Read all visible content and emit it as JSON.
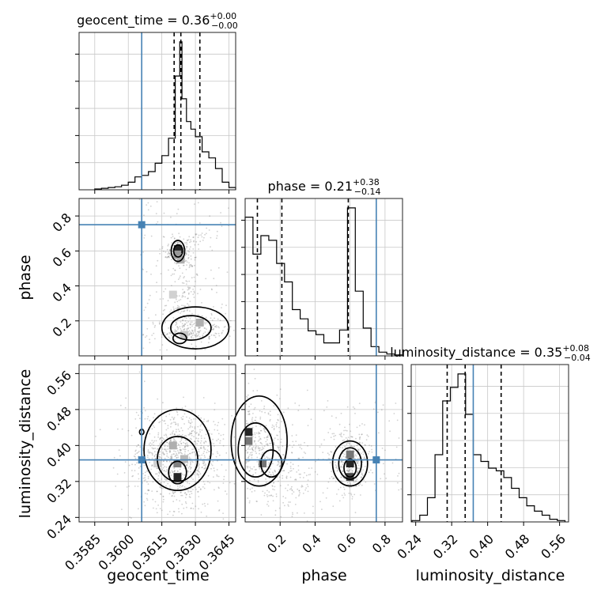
{
  "parameters": [
    "geocent_time",
    "phase",
    "luminosity_distance"
  ],
  "titles": [
    {
      "name": "geocent_time",
      "value": "0.36",
      "plus": "+0.00",
      "minus": "−0.00"
    },
    {
      "name": "phase",
      "value": "0.21",
      "plus": "+0.38",
      "minus": "−0.14"
    },
    {
      "name": "luminosity_distance",
      "value": "0.35",
      "plus": "+0.08",
      "minus": "−0.04"
    }
  ],
  "axis_labels": {
    "geocent_time": "geocent_time",
    "phase": "phase",
    "luminosity_distance": "luminosity_distance"
  },
  "chart_data": {
    "type": "corner",
    "truths": {
      "geocent_time": 0.3606,
      "phase": 0.75,
      "luminosity_distance": 0.368
    },
    "quantiles": {
      "geocent_time": [
        0.36205,
        0.36235,
        0.3632
      ],
      "phase": [
        0.07,
        0.21,
        0.59
      ],
      "luminosity_distance": [
        0.31,
        0.35,
        0.43
      ]
    },
    "ranges": {
      "geocent_time": [
        0.3578,
        0.3648
      ],
      "phase": [
        0.0,
        0.9
      ],
      "luminosity_distance": [
        0.23,
        0.58
      ]
    },
    "ticks": {
      "geocent_time": {
        "values": [
          0.3585,
          0.36,
          0.3615,
          0.363,
          0.3645
        ],
        "labels": [
          "0.3585",
          "0.3600",
          "0.3615",
          "0.3630",
          "0.3645"
        ]
      },
      "phase": {
        "values": [
          0.2,
          0.4,
          0.6,
          0.8
        ],
        "labels": [
          "0.2",
          "0.4",
          "0.6",
          "0.8"
        ]
      },
      "luminosity_distance": {
        "values": [
          0.24,
          0.32,
          0.4,
          0.48,
          0.56
        ],
        "labels": [
          "0.24",
          "0.32",
          "0.40",
          "0.48",
          "0.56"
        ]
      }
    },
    "histograms": {
      "geocent_time": {
        "edges": [
          0.3585,
          0.3588,
          0.3591,
          0.3594,
          0.3597,
          0.36,
          0.3603,
          0.3606,
          0.3609,
          0.3612,
          0.3615,
          0.3618,
          0.3621,
          0.3623,
          0.3624,
          0.3626,
          0.3628,
          0.363,
          0.3633,
          0.3636,
          0.3639,
          0.3642,
          0.3645,
          0.3648
        ],
        "counts": [
          1,
          2,
          3,
          4,
          6,
          10,
          17,
          19,
          24,
          35,
          45,
          68,
          150,
          195,
          120,
          90,
          80,
          70,
          50,
          42,
          28,
          10,
          3
        ]
      },
      "phase": {
        "edges": [
          0.0,
          0.045,
          0.09,
          0.135,
          0.18,
          0.225,
          0.27,
          0.315,
          0.36,
          0.405,
          0.45,
          0.495,
          0.54,
          0.585,
          0.63,
          0.675,
          0.72,
          0.765,
          0.81,
          0.855,
          0.9
        ],
        "counts": [
          150,
          110,
          130,
          125,
          100,
          80,
          50,
          40,
          27,
          23,
          14,
          14,
          28,
          160,
          70,
          30,
          10,
          4,
          2,
          1
        ]
      },
      "luminosity_distance": {
        "edges": [
          0.232,
          0.249,
          0.266,
          0.283,
          0.3,
          0.317,
          0.334,
          0.351,
          0.368,
          0.385,
          0.402,
          0.419,
          0.436,
          0.453,
          0.47,
          0.487,
          0.504,
          0.521,
          0.538,
          0.555,
          0.572
        ],
        "counts": [
          1,
          5,
          18,
          50,
          90,
          100,
          110,
          80,
          50,
          45,
          40,
          38,
          33,
          25,
          18,
          12,
          8,
          5,
          2,
          1
        ]
      }
    },
    "contours": {
      "phase_vs_geocent_time": {
        "cells": [
          {
            "x": 0.36222,
            "y": 0.61,
            "level": 0.95
          },
          {
            "x": 0.36219,
            "y": 0.58,
            "level": 0.45
          },
          {
            "x": 0.36234,
            "y": 0.55,
            "level": 0.35
          },
          {
            "x": 0.362,
            "y": 0.35,
            "level": 0.2
          },
          {
            "x": 0.3632,
            "y": 0.19,
            "level": 0.35
          },
          {
            "x": 0.3625,
            "y": 0.12,
            "level": 0.25
          }
        ],
        "centers": [
          {
            "x": 0.36222,
            "y": 0.6,
            "rx": 0.0003,
            "ry": 0.06
          },
          {
            "x": 0.36223,
            "y": 0.6,
            "rx": 0.0002,
            "ry": 0.035
          },
          {
            "x": 0.363,
            "y": 0.16,
            "rx": 0.0015,
            "ry": 0.12
          },
          {
            "x": 0.3628,
            "y": 0.16,
            "rx": 0.0009,
            "ry": 0.07
          },
          {
            "x": 0.3623,
            "y": 0.1,
            "rx": 0.0003,
            "ry": 0.03
          }
        ]
      },
      "luminosity_distance_vs_geocent_time": {
        "cells": [
          {
            "x": 0.3622,
            "y": 0.33,
            "level": 0.95
          },
          {
            "x": 0.3622,
            "y": 0.36,
            "level": 0.55
          },
          {
            "x": 0.362,
            "y": 0.4,
            "level": 0.35
          },
          {
            "x": 0.3625,
            "y": 0.37,
            "level": 0.3
          },
          {
            "x": 0.3613,
            "y": 0.36,
            "level": 0.2
          }
        ],
        "centers": [
          {
            "x": 0.3622,
            "y": 0.39,
            "rx": 0.0015,
            "ry": 0.09
          },
          {
            "x": 0.3622,
            "y": 0.37,
            "rx": 0.0009,
            "ry": 0.05
          },
          {
            "x": 0.3622,
            "y": 0.34,
            "rx": 0.0004,
            "ry": 0.025
          },
          {
            "x": 0.3606,
            "y": 0.43,
            "rx": 0.0001,
            "ry": 0.006
          }
        ]
      },
      "luminosity_distance_vs_phase": {
        "cells": [
          {
            "x": 0.02,
            "y": 0.43,
            "level": 0.95
          },
          {
            "x": 0.02,
            "y": 0.41,
            "level": 0.6
          },
          {
            "x": 0.1,
            "y": 0.36,
            "level": 0.6
          },
          {
            "x": 0.6,
            "y": 0.36,
            "level": 0.95
          },
          {
            "x": 0.6,
            "y": 0.33,
            "level": 0.8
          },
          {
            "x": 0.6,
            "y": 0.38,
            "level": 0.6
          }
        ],
        "centers": [
          {
            "x": 0.08,
            "y": 0.41,
            "rx": 0.16,
            "ry": 0.1
          },
          {
            "x": 0.06,
            "y": 0.39,
            "rx": 0.1,
            "ry": 0.06
          },
          {
            "x": 0.15,
            "y": 0.36,
            "rx": 0.06,
            "ry": 0.03
          },
          {
            "x": 0.6,
            "y": 0.36,
            "rx": 0.1,
            "ry": 0.05
          },
          {
            "x": 0.6,
            "y": 0.36,
            "rx": 0.065,
            "ry": 0.035
          },
          {
            "x": 0.6,
            "y": 0.35,
            "rx": 0.035,
            "ry": 0.02
          }
        ]
      }
    }
  }
}
